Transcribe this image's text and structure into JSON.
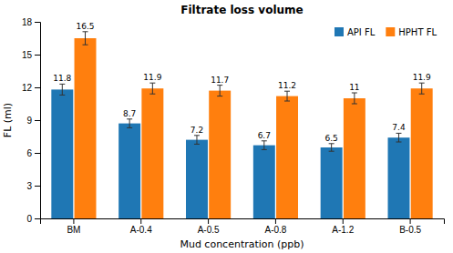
{
  "chart_data": {
    "type": "bar",
    "title": "Filtrate loss volume",
    "x_label": "Mud concentration (ppb)",
    "y_label": "FL (ml)",
    "categories": [
      "BM",
      "A-0.4",
      "A-0.5",
      "A-0.8",
      "A-1.2",
      "B-0.5"
    ],
    "series": [
      {
        "name": "API FL",
        "values": [
          11.8,
          8.7,
          7.2,
          6.7,
          6.5,
          7.4
        ],
        "errors": [
          0.5,
          0.4,
          0.4,
          0.4,
          0.35,
          0.4
        ]
      },
      {
        "name": "HPHT FL",
        "values": [
          16.5,
          11.9,
          11.7,
          11.2,
          11.0,
          11.9
        ],
        "errors": [
          0.6,
          0.5,
          0.5,
          0.45,
          0.5,
          0.5
        ]
      }
    ],
    "ylim": [
      0,
      18
    ],
    "yticks": [
      0,
      3,
      6,
      9,
      12,
      15,
      18
    ],
    "grid": false,
    "legend": "upper right",
    "data_labels": true
  }
}
